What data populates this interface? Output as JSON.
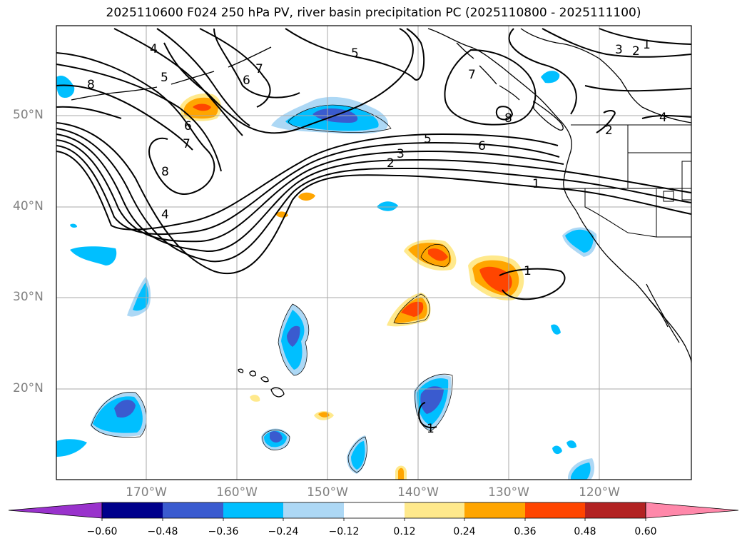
{
  "title": "2025110600 F024 250 hPa PV, river basin precipitation PC (2025110800 - 2025111100)",
  "lat_labels": [
    "50°N",
    "40°N",
    "30°N",
    "20°N"
  ],
  "lon_labels": [
    "170°W",
    "160°W",
    "150°W",
    "140°W",
    "130°W",
    "120°W"
  ],
  "pv_contour_labels": [
    "1",
    "2",
    "3",
    "4",
    "5",
    "6",
    "7",
    "8"
  ],
  "colorbar": {
    "ticks": [
      "−0.60",
      "−0.48",
      "−0.36",
      "−0.24",
      "−0.12",
      "0.12",
      "0.24",
      "0.36",
      "0.48",
      "0.60"
    ],
    "colors": [
      "#9932cc",
      "#00008b",
      "#3a5bcf",
      "#00bfff",
      "#add8f5",
      "#ffffff",
      "#ffe98c",
      "#ffa500",
      "#ff4500",
      "#b22222",
      "#ff88aa"
    ]
  },
  "colors": {
    "neg_strong": "#3a5bcf",
    "neg_mid": "#00bfff",
    "neg_weak": "#add8f5",
    "pos_weak": "#ffe98c",
    "pos_mid": "#ffa500",
    "pos_strong": "#ff4500",
    "grid": "#aaaaaa",
    "axis_label": "#808080"
  }
}
